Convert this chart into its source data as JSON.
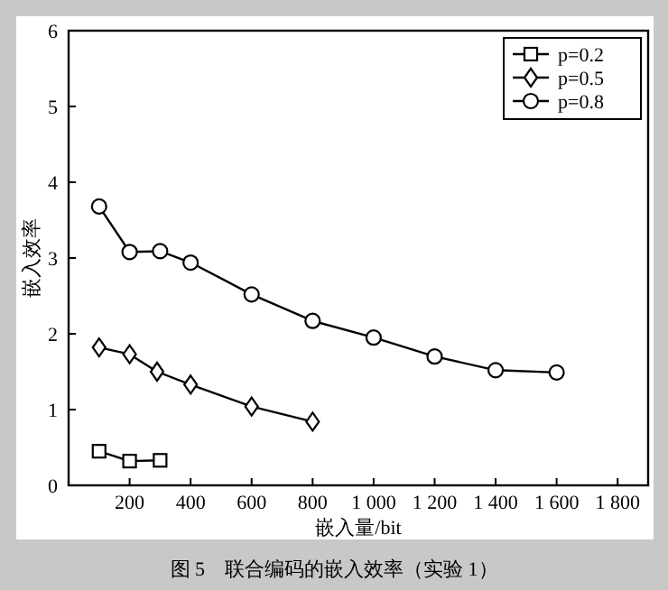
{
  "chart_data": {
    "type": "line",
    "title": "图 5　联合编码的嵌入效率（实验 1）",
    "xlabel": "嵌入量/bit",
    "ylabel": "嵌入效率",
    "xlim": [
      0,
      1900
    ],
    "ylim": [
      0,
      6
    ],
    "xticks": [
      200,
      400,
      600,
      800,
      {
        "value": 1000,
        "label": "1 000"
      },
      {
        "value": 1200,
        "label": "1 200"
      },
      {
        "value": 1400,
        "label": "1 400"
      },
      {
        "value": 1600,
        "label": "1 600"
      },
      {
        "value": 1800,
        "label": "1 800"
      }
    ],
    "yticks": [
      0,
      1,
      2,
      3,
      4,
      5,
      6
    ],
    "grid": false,
    "legend": "top right",
    "line_style": "solid",
    "series": [
      {
        "name": "p=0.2",
        "color": "#000000",
        "marker": "square",
        "x": [
          100,
          200,
          300
        ],
        "values": [
          0.45,
          0.32,
          0.33
        ]
      },
      {
        "name": "p=0.5",
        "color": "#000000",
        "marker": "diamond",
        "x": [
          100,
          200,
          290,
          400,
          600,
          800
        ],
        "values": [
          1.82,
          1.73,
          1.5,
          1.33,
          1.04,
          0.84
        ]
      },
      {
        "name": "p=0.8",
        "color": "#000000",
        "marker": "circle",
        "x": [
          100,
          200,
          300,
          400,
          600,
          800,
          1000,
          1200,
          1400,
          1600
        ],
        "values": [
          3.68,
          3.08,
          3.09,
          2.94,
          2.52,
          2.17,
          1.95,
          1.7,
          1.52,
          1.49
        ]
      }
    ]
  }
}
